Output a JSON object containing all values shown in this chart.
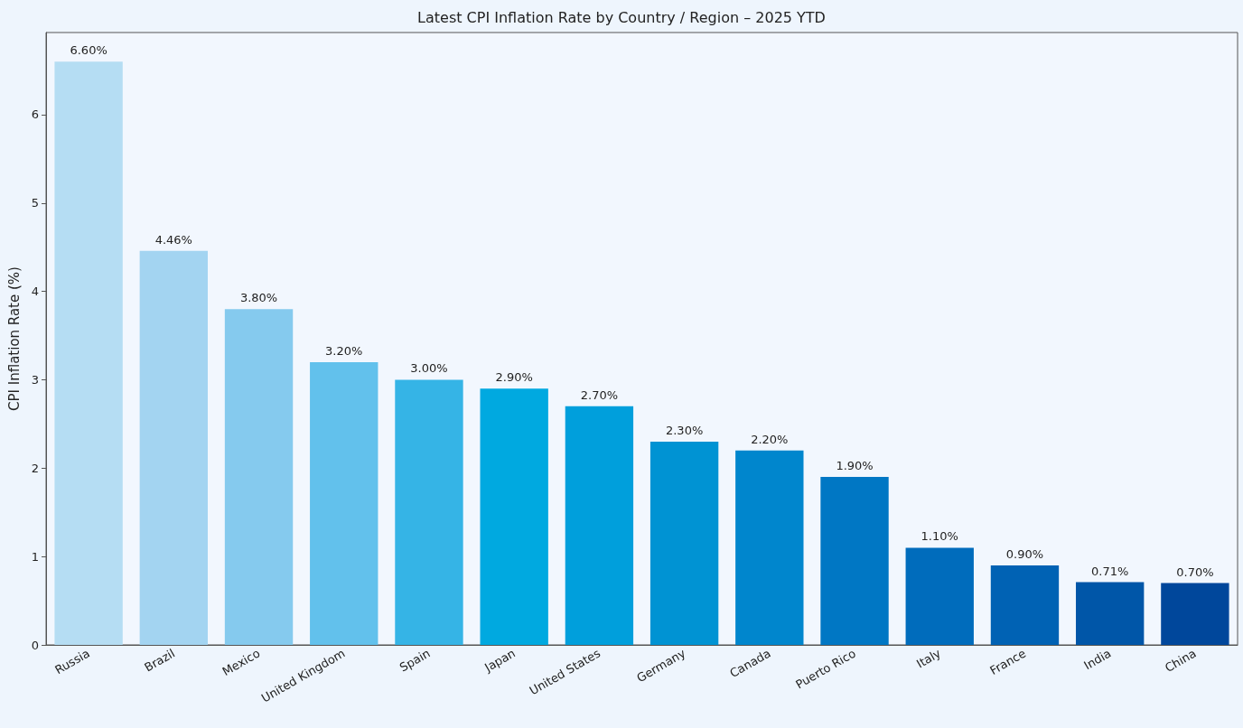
{
  "chart_data": {
    "type": "bar",
    "title": "Latest CPI Inflation Rate by Country / Region – 2025 YTD",
    "ylabel": "CPI Inflation Rate (%)",
    "categories": [
      "Russia",
      "Brazil",
      "Mexico",
      "United Kingdom",
      "Spain",
      "Japan",
      "United States",
      "Germany",
      "Canada",
      "Puerto Rico",
      "Italy",
      "France",
      "India",
      "China"
    ],
    "values": [
      6.6,
      4.46,
      3.8,
      3.2,
      3.0,
      2.9,
      2.7,
      2.3,
      2.2,
      1.9,
      1.1,
      0.9,
      0.71,
      0.7
    ],
    "value_labels": [
      "6.60%",
      "4.46%",
      "3.80%",
      "3.20%",
      "3.00%",
      "2.90%",
      "2.70%",
      "2.30%",
      "2.20%",
      "1.90%",
      "1.10%",
      "0.90%",
      "0.71%",
      "0.70%"
    ],
    "colors": [
      "#b5ddf3",
      "#a3d4f1",
      "#85caee",
      "#62c1ec",
      "#35b4e6",
      "#00a9e0",
      "#009fdc",
      "#0093d3",
      "#0086cd",
      "#0077c4",
      "#006cbc",
      "#0062b4",
      "#0056a8",
      "#00479b"
    ],
    "ylim": [
      0,
      6.93
    ],
    "yticks": [
      0,
      1,
      2,
      3,
      4,
      5,
      6
    ],
    "grid": false
  }
}
